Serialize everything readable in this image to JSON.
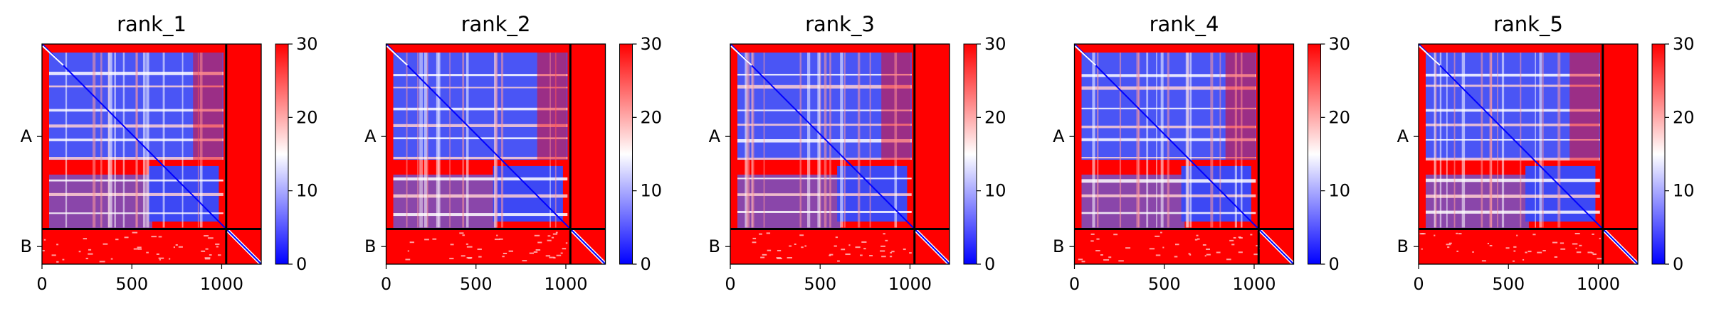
{
  "figure": {
    "colorbar": {
      "ticks": [
        "0",
        "10",
        "20",
        "30"
      ],
      "colors": {
        "low": "#0000ff",
        "mid": "#ffffff",
        "high": "#ff0000"
      }
    },
    "divider_color": "#000000"
  },
  "chart_data": [
    {
      "type": "heatmap",
      "title": "rank_1",
      "x_ticks": [
        0,
        500,
        1000
      ],
      "x_tick_labels": [
        "0",
        "500",
        "1000"
      ],
      "xlim": [
        0,
        1220
      ],
      "y_ticks": [
        "A",
        "B"
      ],
      "chains": [
        {
          "name": "A",
          "length": 1025
        },
        {
          "name": "B",
          "length": 195
        }
      ],
      "value_range": [
        0,
        30
      ],
      "colormap": "bwr",
      "grid": false
    },
    {
      "type": "heatmap",
      "title": "rank_2",
      "x_ticks": [
        0,
        500,
        1000
      ],
      "x_tick_labels": [
        "0",
        "500",
        "1000"
      ],
      "xlim": [
        0,
        1220
      ],
      "y_ticks": [
        "A",
        "B"
      ],
      "chains": [
        {
          "name": "A",
          "length": 1025
        },
        {
          "name": "B",
          "length": 195
        }
      ],
      "value_range": [
        0,
        30
      ],
      "colormap": "bwr",
      "grid": false
    },
    {
      "type": "heatmap",
      "title": "rank_3",
      "x_ticks": [
        0,
        500,
        1000
      ],
      "x_tick_labels": [
        "0",
        "500",
        "1000"
      ],
      "xlim": [
        0,
        1220
      ],
      "y_ticks": [
        "A",
        "B"
      ],
      "chains": [
        {
          "name": "A",
          "length": 1025
        },
        {
          "name": "B",
          "length": 195
        }
      ],
      "value_range": [
        0,
        30
      ],
      "colormap": "bwr",
      "grid": false
    },
    {
      "type": "heatmap",
      "title": "rank_4",
      "x_ticks": [
        0,
        500,
        1000
      ],
      "x_tick_labels": [
        "0",
        "500",
        "1000"
      ],
      "xlim": [
        0,
        1220
      ],
      "y_ticks": [
        "A",
        "B"
      ],
      "chains": [
        {
          "name": "A",
          "length": 1025
        },
        {
          "name": "B",
          "length": 195
        }
      ],
      "value_range": [
        0,
        30
      ],
      "colormap": "bwr",
      "grid": false
    },
    {
      "type": "heatmap",
      "title": "rank_5",
      "x_ticks": [
        0,
        500,
        1000
      ],
      "x_tick_labels": [
        "0",
        "500",
        "1000"
      ],
      "xlim": [
        0,
        1220
      ],
      "y_ticks": [
        "A",
        "B"
      ],
      "chains": [
        {
          "name": "A",
          "length": 1025
        },
        {
          "name": "B",
          "length": 195
        }
      ],
      "value_range": [
        0,
        30
      ],
      "colormap": "bwr",
      "grid": false
    }
  ]
}
